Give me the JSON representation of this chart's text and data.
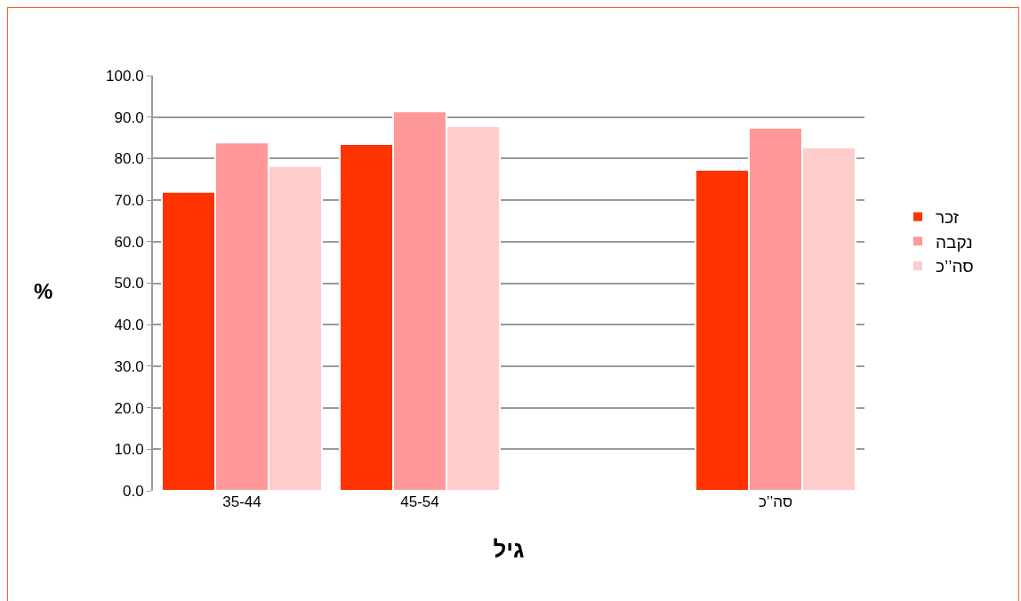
{
  "chart_data": {
    "type": "bar",
    "xlabel": "גיל",
    "ylabel": "%",
    "categories": [
      "35-44",
      "45-54",
      null,
      "סה’’כ"
    ],
    "series": [
      {
        "name": "זכר",
        "color": "#ff3300",
        "values": [
          72.0,
          83.5,
          null,
          77.3
        ]
      },
      {
        "name": "נקבה",
        "color": "#ff9999",
        "values": [
          83.9,
          91.4,
          null,
          87.4
        ]
      },
      {
        "name": "סה’’כ",
        "color": "#ffcccc",
        "values": [
          78.2,
          87.8,
          null,
          82.7
        ]
      }
    ],
    "ylim": [
      0,
      100
    ],
    "yticks": [
      {
        "value": 0,
        "label": "0.0"
      },
      {
        "value": 10,
        "label": "10.0"
      },
      {
        "value": 20,
        "label": "20.0"
      },
      {
        "value": 30,
        "label": "30.0"
      },
      {
        "value": 40,
        "label": "40.0"
      },
      {
        "value": 50,
        "label": "50.0"
      },
      {
        "value": 60,
        "label": "60.0"
      },
      {
        "value": 70,
        "label": "70.0"
      },
      {
        "value": 80,
        "label": "80.0"
      },
      {
        "value": 90,
        "label": "90.0"
      },
      {
        "value": 100,
        "label": "100.0"
      }
    ],
    "grid": "y",
    "legend": "right"
  }
}
